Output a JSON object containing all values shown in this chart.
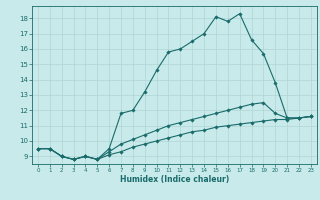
{
  "xlabel": "Humidex (Indice chaleur)",
  "bg_color": "#c8eaea",
  "grid_color": "#b0d4d4",
  "line_color": "#1a6b6b",
  "xlim": [
    -0.5,
    23.5
  ],
  "ylim": [
    8.5,
    18.8
  ],
  "xticks": [
    0,
    1,
    2,
    3,
    4,
    5,
    6,
    7,
    8,
    9,
    10,
    11,
    12,
    13,
    14,
    15,
    16,
    17,
    18,
    19,
    20,
    21,
    22,
    23
  ],
  "yticks": [
    9,
    10,
    11,
    12,
    13,
    14,
    15,
    16,
    17,
    18
  ],
  "line1_x": [
    0,
    1,
    2,
    3,
    4,
    5,
    6,
    7,
    8,
    9,
    10,
    11,
    12,
    13,
    14,
    15,
    16,
    17,
    18,
    19,
    20,
    21,
    22,
    23
  ],
  "line1_y": [
    9.5,
    9.5,
    9.0,
    8.8,
    9.0,
    8.8,
    9.5,
    11.8,
    12.0,
    13.2,
    14.6,
    15.8,
    16.0,
    16.5,
    17.0,
    18.1,
    17.8,
    18.3,
    16.6,
    15.7,
    13.8,
    11.5,
    11.5,
    11.6
  ],
  "line2_x": [
    0,
    1,
    2,
    3,
    4,
    5,
    6,
    7,
    8,
    9,
    10,
    11,
    12,
    13,
    14,
    15,
    16,
    17,
    18,
    19,
    20,
    21,
    22,
    23
  ],
  "line2_y": [
    9.5,
    9.5,
    9.0,
    8.8,
    9.0,
    8.8,
    9.3,
    9.8,
    10.1,
    10.4,
    10.7,
    11.0,
    11.2,
    11.4,
    11.6,
    11.8,
    12.0,
    12.2,
    12.4,
    12.5,
    11.8,
    11.5,
    11.5,
    11.6
  ],
  "line3_x": [
    0,
    1,
    2,
    3,
    4,
    5,
    6,
    7,
    8,
    9,
    10,
    11,
    12,
    13,
    14,
    15,
    16,
    17,
    18,
    19,
    20,
    21,
    22,
    23
  ],
  "line3_y": [
    9.5,
    9.5,
    9.0,
    8.8,
    9.0,
    8.8,
    9.1,
    9.3,
    9.6,
    9.8,
    10.0,
    10.2,
    10.4,
    10.6,
    10.7,
    10.9,
    11.0,
    11.1,
    11.2,
    11.3,
    11.4,
    11.4,
    11.5,
    11.6
  ]
}
